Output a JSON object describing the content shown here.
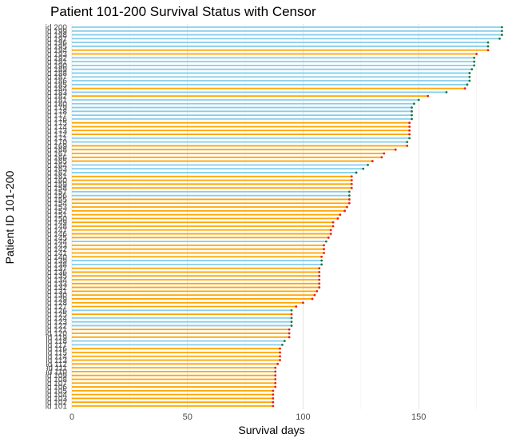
{
  "chart_data": {
    "type": "lollipop",
    "title": "Patient 101-200 Survival Status with Censor",
    "xlabel": "Survival days",
    "ylabel": "Patient ID 101-200",
    "xlim": [
      0,
      190
    ],
    "xticks": [
      0,
      50,
      100,
      150
    ],
    "grid": "vertical",
    "colors": {
      "censored": "#87CEEB",
      "event": "#FFA500",
      "point_censored": "#1b7a3a",
      "point_event": "#e8201a"
    },
    "patients": [
      {
        "id": "id 200",
        "days": 186,
        "censor": 1
      },
      {
        "id": "id 199",
        "days": 186,
        "censor": 1
      },
      {
        "id": "id 198",
        "days": 186,
        "censor": 1
      },
      {
        "id": "id 197",
        "days": 185,
        "censor": 1
      },
      {
        "id": "id 196",
        "days": 180,
        "censor": 1
      },
      {
        "id": "id 195",
        "days": 180,
        "censor": 1
      },
      {
        "id": "id 194",
        "days": 180,
        "censor": 0
      },
      {
        "id": "id 193",
        "days": 175,
        "censor": 0
      },
      {
        "id": "id 192",
        "days": 174,
        "censor": 1
      },
      {
        "id": "id 191",
        "days": 174,
        "censor": 1
      },
      {
        "id": "id 190",
        "days": 174,
        "censor": 1
      },
      {
        "id": "id 189",
        "days": 173,
        "censor": 1
      },
      {
        "id": "id 188",
        "days": 172,
        "censor": 1
      },
      {
        "id": "id 187",
        "days": 172,
        "censor": 1
      },
      {
        "id": "id 186",
        "days": 172,
        "censor": 1
      },
      {
        "id": "id 185",
        "days": 171,
        "censor": 1
      },
      {
        "id": "id 184",
        "days": 170,
        "censor": 0
      },
      {
        "id": "id 183",
        "days": 162,
        "censor": 1
      },
      {
        "id": "id 182",
        "days": 154,
        "censor": 0
      },
      {
        "id": "id 181",
        "days": 150,
        "censor": 1
      },
      {
        "id": "id 180",
        "days": 148,
        "censor": 1
      },
      {
        "id": "id 179",
        "days": 147,
        "censor": 1
      },
      {
        "id": "id 178",
        "days": 147,
        "censor": 1
      },
      {
        "id": "id 177",
        "days": 147,
        "censor": 1
      },
      {
        "id": "id 176",
        "days": 147,
        "censor": 1
      },
      {
        "id": "id 175",
        "days": 146,
        "censor": 0
      },
      {
        "id": "id 174",
        "days": 146,
        "censor": 0
      },
      {
        "id": "id 173",
        "days": 146,
        "censor": 0
      },
      {
        "id": "id 172",
        "days": 146,
        "censor": 0
      },
      {
        "id": "id 171",
        "days": 146,
        "censor": 1
      },
      {
        "id": "id 170",
        "days": 145,
        "censor": 1
      },
      {
        "id": "id 169",
        "days": 145,
        "censor": 0
      },
      {
        "id": "id 168",
        "days": 140,
        "censor": 0
      },
      {
        "id": "id 167",
        "days": 135,
        "censor": 0
      },
      {
        "id": "id 166",
        "days": 134,
        "censor": 0
      },
      {
        "id": "id 165",
        "days": 130,
        "censor": 0
      },
      {
        "id": "id 164",
        "days": 128,
        "censor": 1
      },
      {
        "id": "id 163",
        "days": 126,
        "censor": 1
      },
      {
        "id": "id 162",
        "days": 123,
        "censor": 1
      },
      {
        "id": "id 161",
        "days": 121,
        "censor": 0
      },
      {
        "id": "id 160",
        "days": 121,
        "censor": 0
      },
      {
        "id": "id 159",
        "days": 121,
        "censor": 0
      },
      {
        "id": "id 158",
        "days": 121,
        "censor": 0
      },
      {
        "id": "id 157",
        "days": 120,
        "censor": 1
      },
      {
        "id": "id 156",
        "days": 120,
        "censor": 1
      },
      {
        "id": "id 155",
        "days": 120,
        "censor": 0
      },
      {
        "id": "id 154",
        "days": 120,
        "censor": 0
      },
      {
        "id": "id 153",
        "days": 119,
        "censor": 0
      },
      {
        "id": "id 152",
        "days": 118,
        "censor": 0
      },
      {
        "id": "id 151",
        "days": 116,
        "censor": 0
      },
      {
        "id": "id 150",
        "days": 115,
        "censor": 0
      },
      {
        "id": "id 149",
        "days": 113,
        "censor": 0
      },
      {
        "id": "id 148",
        "days": 113,
        "censor": 0
      },
      {
        "id": "id 147",
        "days": 112,
        "censor": 0
      },
      {
        "id": "id 146",
        "days": 112,
        "censor": 0
      },
      {
        "id": "id 145",
        "days": 111,
        "censor": 0
      },
      {
        "id": "id 144",
        "days": 110,
        "censor": 1
      },
      {
        "id": "id 143",
        "days": 109,
        "censor": 0
      },
      {
        "id": "id 142",
        "days": 109,
        "censor": 0
      },
      {
        "id": "id 141",
        "days": 109,
        "censor": 0
      },
      {
        "id": "id 140",
        "days": 108,
        "censor": 0
      },
      {
        "id": "id 139",
        "days": 108,
        "censor": 1
      },
      {
        "id": "id 138",
        "days": 108,
        "censor": 1
      },
      {
        "id": "id 137",
        "days": 107,
        "censor": 0
      },
      {
        "id": "id 136",
        "days": 107,
        "censor": 0
      },
      {
        "id": "id 135",
        "days": 107,
        "censor": 0
      },
      {
        "id": "id 134",
        "days": 107,
        "censor": 0
      },
      {
        "id": "id 133",
        "days": 107,
        "censor": 0
      },
      {
        "id": "id 132",
        "days": 107,
        "censor": 0
      },
      {
        "id": "id 131",
        "days": 106,
        "censor": 0
      },
      {
        "id": "id 130",
        "days": 105,
        "censor": 0
      },
      {
        "id": "id 129",
        "days": 104,
        "censor": 0
      },
      {
        "id": "id 128",
        "days": 100,
        "censor": 0
      },
      {
        "id": "id 127",
        "days": 97,
        "censor": 0
      },
      {
        "id": "id 126",
        "days": 95,
        "censor": 1
      },
      {
        "id": "id 125",
        "days": 95,
        "censor": 0
      },
      {
        "id": "id 124",
        "days": 95,
        "censor": 1
      },
      {
        "id": "id 123",
        "days": 95,
        "censor": 1
      },
      {
        "id": "id 122",
        "days": 95,
        "censor": 1
      },
      {
        "id": "id 121",
        "days": 94,
        "censor": 0
      },
      {
        "id": "id 120",
        "days": 94,
        "censor": 0
      },
      {
        "id": "id 119",
        "days": 94,
        "censor": 0
      },
      {
        "id": "id 118",
        "days": 92,
        "censor": 1
      },
      {
        "id": "id 117",
        "days": 91,
        "censor": 1
      },
      {
        "id": "id 116",
        "days": 90,
        "censor": 0
      },
      {
        "id": "id 115",
        "days": 90,
        "censor": 0
      },
      {
        "id": "id 114",
        "days": 90,
        "censor": 0
      },
      {
        "id": "id 113",
        "days": 90,
        "censor": 0
      },
      {
        "id": "id 112",
        "days": 89,
        "censor": 0
      },
      {
        "id": "id 111",
        "days": 88,
        "censor": 0
      },
      {
        "id": "id 110",
        "days": 88,
        "censor": 0
      },
      {
        "id": "id 109",
        "days": 88,
        "censor": 0
      },
      {
        "id": "id 108",
        "days": 88,
        "censor": 0
      },
      {
        "id": "id 107",
        "days": 88,
        "censor": 0
      },
      {
        "id": "id 106",
        "days": 88,
        "censor": 0
      },
      {
        "id": "id 105",
        "days": 87,
        "censor": 0
      },
      {
        "id": "id 104",
        "days": 87,
        "censor": 0
      },
      {
        "id": "id 103",
        "days": 87,
        "censor": 0
      },
      {
        "id": "id 102",
        "days": 87,
        "censor": 0
      },
      {
        "id": "id 101",
        "days": 87,
        "censor": 0
      }
    ]
  }
}
